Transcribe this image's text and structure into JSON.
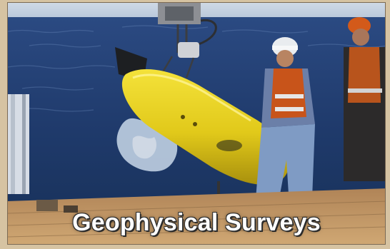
{
  "caption": {
    "text": "Geophysical Surveys"
  },
  "colors": {
    "sea": "#1f3a6b",
    "vehicle": "#e8d21c",
    "deck": "#c49a62",
    "frame": "#d6c3a2"
  }
}
